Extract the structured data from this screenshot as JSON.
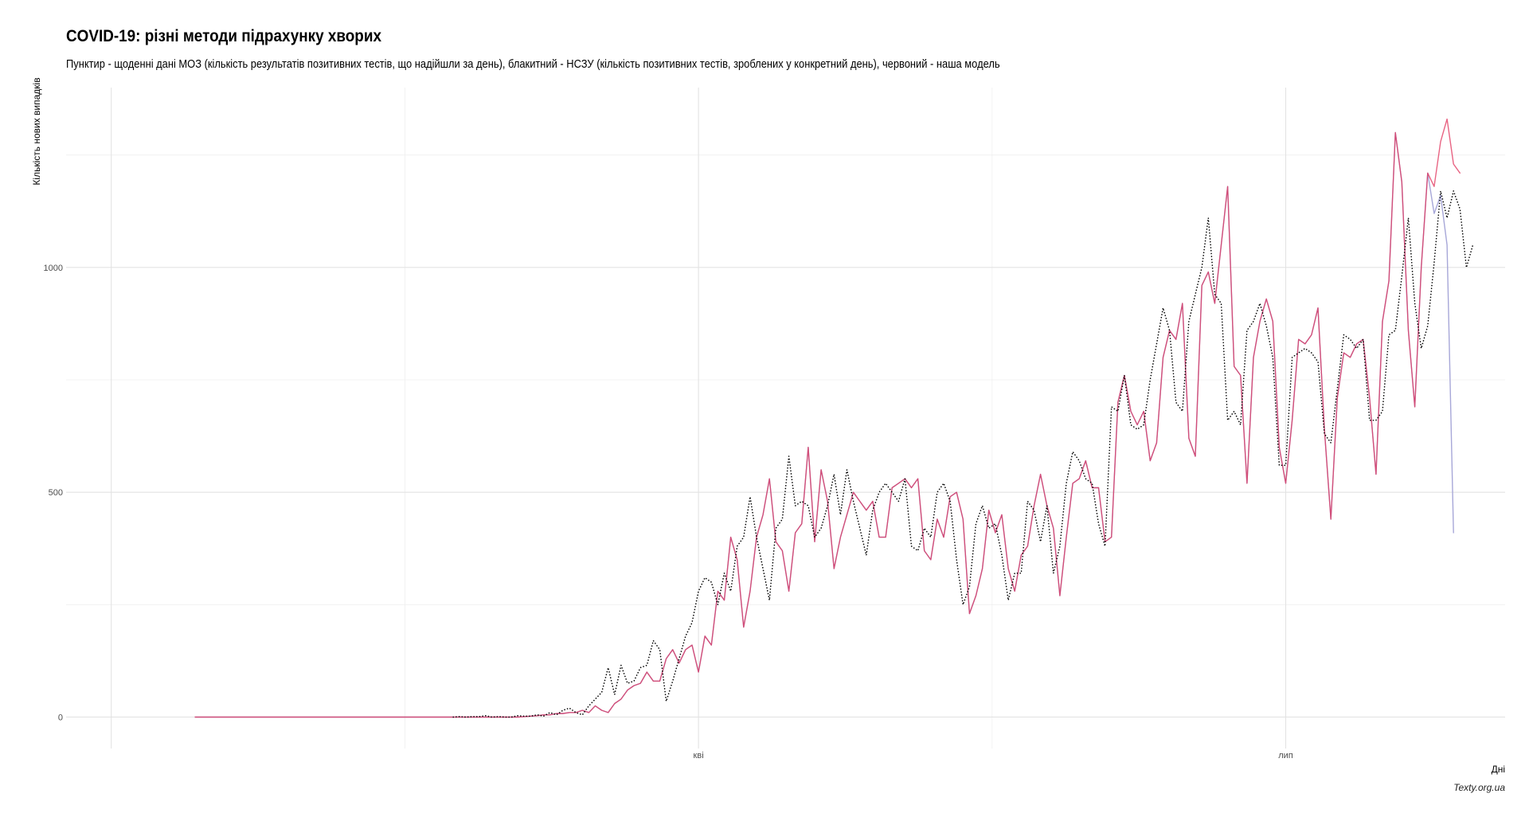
{
  "chart_data": {
    "type": "line",
    "title": "COVID-19: різні методи підрахунку хворих",
    "subtitle": "Пунктир - щоденні дані МОЗ (кількість результатів позитивних тестів, що надійшли за день), блакитний - НСЗУ (кількість позитивних тестів, зроблених у конкретний день), червоний - наша модель",
    "caption": "Texty.org.ua",
    "xlabel": "Дні",
    "ylabel": "Кількість нових випадків",
    "x_unit": "day index (0 = first plotted day; 'кві' tick at day 78, 'лип' tick at day 169)",
    "xlim": [
      -20,
      203
    ],
    "ylim": [
      -70,
      1400
    ],
    "x_ticks": [
      {
        "value": 78,
        "label": "кві"
      },
      {
        "value": 169,
        "label": "лип"
      }
    ],
    "y_ticks": [
      {
        "value": 0,
        "label": "0"
      },
      {
        "value": 500,
        "label": "500"
      },
      {
        "value": 1000,
        "label": "1000"
      }
    ],
    "grid": true,
    "series": [
      {
        "role": "moz",
        "style": "dotted",
        "color": "#000000",
        "start_day": 40,
        "values": [
          0,
          1,
          0,
          1,
          1,
          3,
          0,
          1,
          0,
          0,
          3,
          2,
          2,
          5,
          2,
          10,
          5,
          15,
          20,
          10,
          5,
          25,
          40,
          55,
          110,
          50,
          115,
          75,
          80,
          110,
          115,
          170,
          150,
          35,
          80,
          130,
          180,
          210,
          280,
          310,
          300,
          250,
          320,
          280,
          380,
          400,
          490,
          400,
          330,
          260,
          420,
          440,
          580,
          470,
          480,
          470,
          400,
          420,
          470,
          540,
          450,
          550,
          480,
          420,
          360,
          460,
          500,
          520,
          500,
          480,
          530,
          380,
          370,
          420,
          400,
          500,
          520,
          480,
          350,
          250,
          290,
          430,
          470,
          420,
          430,
          360,
          260,
          320,
          320,
          480,
          460,
          390,
          470,
          320,
          380,
          520,
          590,
          570,
          530,
          520,
          430,
          380,
          690,
          680,
          760,
          650,
          640,
          650,
          750,
          830,
          910,
          860,
          700,
          680,
          880,
          940,
          1000,
          1110,
          940,
          920,
          660,
          680,
          650,
          860,
          880,
          920,
          870,
          800,
          560,
          560,
          800,
          810,
          820,
          810,
          790,
          630,
          610,
          730,
          850,
          840,
          820,
          840,
          660,
          660,
          680,
          850,
          860,
          980,
          1110,
          920,
          820,
          870,
          1010,
          1170,
          1110,
          1170,
          1130,
          1000,
          1050
        ]
      },
      {
        "role": "nszu",
        "style": "solid",
        "color": "#a7a7d8",
        "start_day": 0,
        "values": [
          0,
          0,
          0,
          0,
          0,
          0,
          0,
          0,
          0,
          0,
          0,
          0,
          0,
          0,
          0,
          0,
          0,
          0,
          0,
          0,
          0,
          0,
          0,
          0,
          0,
          0,
          0,
          0,
          0,
          0,
          0,
          0,
          0,
          0,
          0,
          0,
          0,
          0,
          0,
          0,
          0,
          0,
          0,
          0,
          0,
          0,
          0,
          0,
          0,
          0,
          0,
          1,
          2,
          3,
          5,
          5,
          8,
          8,
          10,
          10,
          15,
          10,
          25,
          15,
          10,
          30,
          40,
          60,
          70,
          75,
          100,
          80,
          80,
          130,
          150,
          120,
          150,
          160,
          100,
          180,
          160,
          280,
          260,
          400,
          350,
          200,
          280,
          400,
          450,
          530,
          390,
          370,
          280,
          410,
          430,
          600,
          390,
          550,
          480,
          330,
          400,
          450,
          500,
          480,
          460,
          480,
          400,
          400,
          510,
          520,
          530,
          510,
          530,
          370,
          350,
          440,
          400,
          490,
          500,
          440,
          230,
          270,
          330,
          460,
          410,
          450,
          330,
          280,
          360,
          380,
          470,
          540,
          470,
          420,
          270,
          400,
          520,
          530,
          570,
          510,
          510,
          390,
          400,
          700,
          760,
          680,
          650,
          680,
          570,
          610,
          800,
          860,
          840,
          920,
          620,
          580,
          960,
          990,
          920,
          1050,
          1180,
          780,
          760,
          520,
          800,
          880,
          930,
          880,
          600,
          520,
          660,
          840,
          830,
          850,
          910,
          640,
          440,
          710,
          810,
          800,
          830,
          840,
          710,
          540,
          880,
          970,
          1300,
          1190,
          860,
          690,
          1000,
          1210,
          1120,
          1160,
          1050,
          410
        ]
      },
      {
        "role": "model",
        "style": "solid",
        "color": "#e0305a",
        "start_day": 0,
        "values": [
          0,
          0,
          0,
          0,
          0,
          0,
          0,
          0,
          0,
          0,
          0,
          0,
          0,
          0,
          0,
          0,
          0,
          0,
          0,
          0,
          0,
          0,
          0,
          0,
          0,
          0,
          0,
          0,
          0,
          0,
          0,
          0,
          0,
          0,
          0,
          0,
          0,
          0,
          0,
          0,
          0,
          0,
          0,
          0,
          0,
          0,
          0,
          0,
          0,
          0,
          0,
          1,
          2,
          3,
          5,
          5,
          8,
          8,
          10,
          10,
          15,
          10,
          25,
          15,
          10,
          30,
          40,
          60,
          70,
          75,
          100,
          80,
          80,
          130,
          150,
          120,
          150,
          160,
          100,
          180,
          160,
          280,
          260,
          400,
          350,
          200,
          280,
          400,
          450,
          530,
          390,
          370,
          280,
          410,
          430,
          600,
          390,
          550,
          480,
          330,
          400,
          450,
          500,
          480,
          460,
          480,
          400,
          400,
          510,
          520,
          530,
          510,
          530,
          370,
          350,
          440,
          400,
          490,
          500,
          440,
          230,
          270,
          330,
          460,
          410,
          450,
          330,
          280,
          360,
          380,
          470,
          540,
          470,
          420,
          270,
          400,
          520,
          530,
          570,
          510,
          510,
          390,
          400,
          700,
          760,
          680,
          650,
          680,
          570,
          610,
          800,
          860,
          840,
          920,
          620,
          580,
          960,
          990,
          920,
          1050,
          1180,
          780,
          760,
          520,
          800,
          880,
          930,
          880,
          600,
          520,
          660,
          840,
          830,
          850,
          910,
          640,
          440,
          710,
          810,
          800,
          830,
          840,
          710,
          540,
          880,
          970,
          1300,
          1190,
          860,
          690,
          1000,
          1210,
          1180,
          1280,
          1330,
          1230,
          1210
        ]
      }
    ]
  }
}
